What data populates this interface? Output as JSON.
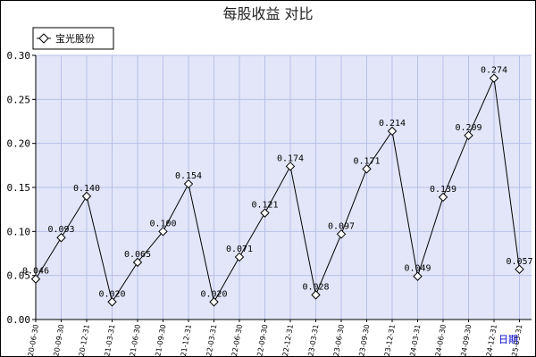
{
  "chart_data": {
    "type": "line",
    "title": "每股收益  对比",
    "x_unit_label": "日期",
    "legend_placement": "top-left",
    "grid": true,
    "ylim": [
      0,
      0.3
    ],
    "y_ticks": [
      "0.00",
      "0.05",
      "0.10",
      "0.15",
      "0.20",
      "0.25",
      "0.30"
    ],
    "categories": [
      "2020-06-30",
      "2020-09-30",
      "2020-12-31",
      "2021-03-31",
      "2021-06-30",
      "2021-09-30",
      "2021-12-31",
      "2022-03-31",
      "2022-06-30",
      "2022-09-30",
      "2022-12-31",
      "2023-03-31",
      "2023-06-30",
      "2023-09-30",
      "2023-12-31",
      "2024-03-31",
      "2024-06-30",
      "2024-09-30",
      "2024-12-31",
      "2025-03-31"
    ],
    "series": [
      {
        "name": "宝光股份",
        "values": [
          0.046,
          0.093,
          0.14,
          0.02,
          0.065,
          0.1,
          0.154,
          0.02,
          0.071,
          0.121,
          0.174,
          0.028,
          0.097,
          0.171,
          0.214,
          0.049,
          0.139,
          0.209,
          0.274,
          0.057
        ],
        "labels": [
          "0.046",
          "0.093",
          "0.140",
          "0.020",
          "0.065",
          "0.100",
          "0.154",
          "0.020",
          "0.071",
          "0.121",
          "0.174",
          "0.028",
          "0.097",
          "0.171",
          "0.214",
          "0.049",
          "0.139",
          "0.209",
          "0.274",
          "0.057"
        ]
      }
    ],
    "colors": {
      "plot_background": "#e2e6f8",
      "grid": "#b8c0e8",
      "line": "#000000",
      "marker_fill": "#ffffff",
      "axis_unit": "#0000cc"
    }
  }
}
